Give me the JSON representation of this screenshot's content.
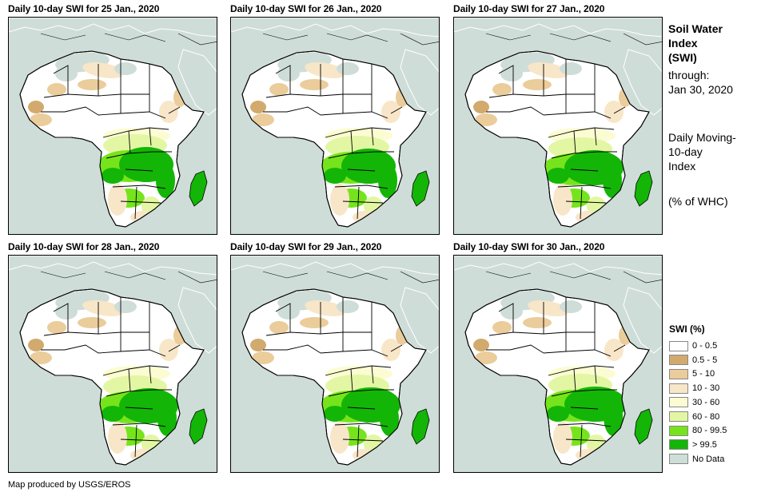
{
  "panels": [
    {
      "title": "Daily 10-day SWI for 25 Jan., 2020",
      "variant": 0
    },
    {
      "title": "Daily 10-day SWI for 26 Jan., 2020",
      "variant": 1
    },
    {
      "title": "Daily 10-day SWI for 27 Jan., 2020",
      "variant": 2
    },
    {
      "title": "Daily 10-day SWI for 28 Jan., 2020",
      "variant": 3
    },
    {
      "title": "Daily 10-day SWI for 29 Jan., 2020",
      "variant": 4
    },
    {
      "title": "Daily 10-day SWI for 30 Jan., 2020",
      "variant": 5
    }
  ],
  "info": {
    "title_lines": [
      "Soil Water",
      "Index",
      "(SWI)"
    ],
    "through_label": "through:",
    "through_date": "Jan 30, 2020",
    "index_lines": [
      "Daily Moving-",
      "10-day",
      "Index"
    ],
    "unit": "(% of WHC)"
  },
  "legend": {
    "title": "SWI (%)",
    "items": [
      {
        "label": "0 - 0.5",
        "color": "#ffffff"
      },
      {
        "label": "0.5 - 5",
        "color": "#d2aa6e"
      },
      {
        "label": "5 - 10",
        "color": "#ebcc9b"
      },
      {
        "label": "10 - 30",
        "color": "#f8e6c8"
      },
      {
        "label": "30 - 60",
        "color": "#fbfcd2"
      },
      {
        "label": "60 - 80",
        "color": "#e3f6a4"
      },
      {
        "label": "80 - 99.5",
        "color": "#76e41c"
      },
      {
        "label": "> 99.5",
        "color": "#13b606"
      },
      {
        "label": "No Data",
        "color": "#cfddd8"
      }
    ]
  },
  "colors": {
    "ocean": "#cfddd8",
    "land": "#ffffff",
    "border": "#000000"
  },
  "credit": "Map produced by USGS/EROS"
}
